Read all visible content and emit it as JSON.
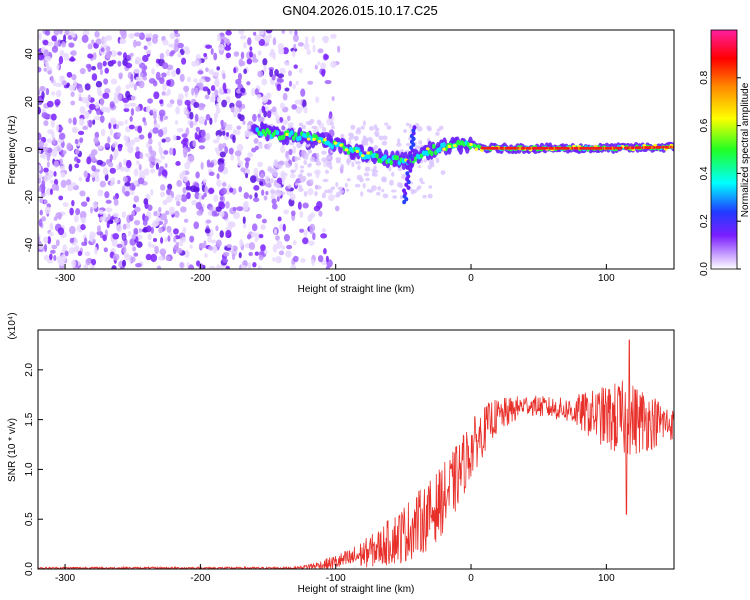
{
  "title": "GN04.2026.015.10.17.C25",
  "chart_data": [
    {
      "type": "heatmap",
      "xlabel": "Height of straight line (km)",
      "ylabel": "Frequency (Hz)",
      "xlim": [
        -320,
        150
      ],
      "ylim": [
        -50,
        50
      ],
      "x_ticks": [
        -300,
        -200,
        -100,
        0,
        100
      ],
      "y_ticks": [
        -40,
        -20,
        0,
        20,
        40
      ],
      "colorbar": {
        "label": "Normalized spectral amplitude",
        "range": [
          0,
          1
        ],
        "ticks": [
          0.0,
          0.2,
          0.4,
          0.6,
          0.8
        ],
        "tick_labels": [
          "0.0",
          "0.2",
          "0.4",
          "0.6",
          "0.8"
        ],
        "colors": [
          "#ffffff",
          "#c8a0ff",
          "#7a1fff",
          "#1f3cff",
          "#00ffff",
          "#22ff22",
          "#ffff00",
          "#ff8c00",
          "#ff0000",
          "#ff1fa0"
        ]
      },
      "noise_region_x": [
        -320,
        -120
      ],
      "signal_track": [
        {
          "x": -160,
          "y": 8
        },
        {
          "x": -140,
          "y": 6
        },
        {
          "x": -120,
          "y": 5
        },
        {
          "x": -100,
          "y": 2
        },
        {
          "x": -80,
          "y": -2
        },
        {
          "x": -60,
          "y": -4
        },
        {
          "x": -45,
          "y": -5
        },
        {
          "x": -35,
          "y": -1
        },
        {
          "x": -20,
          "y": 1
        },
        {
          "x": -5,
          "y": 2
        },
        {
          "x": 10,
          "y": 0.5
        },
        {
          "x": 50,
          "y": 0.5
        },
        {
          "x": 100,
          "y": 0.5
        },
        {
          "x": 150,
          "y": 1
        }
      ]
    },
    {
      "type": "line",
      "xlabel": "Height of straight line (km)",
      "ylabel": "SNR (10 * v/v)",
      "y_multiplier": "(x10⁴)",
      "xlim": [
        -320,
        150
      ],
      "ylim": [
        0,
        2.4
      ],
      "x_ticks": [
        -300,
        -200,
        -100,
        0,
        100
      ],
      "y_ticks": [
        0.0,
        0.5,
        1.0,
        1.5,
        2.0
      ],
      "y_tick_labels": [
        "0.0",
        "0.5",
        "1.0",
        "1.5",
        "2.0"
      ],
      "color": "#e8302a",
      "envelope": [
        {
          "x": -320,
          "mean": 0.01,
          "amp": 0.01
        },
        {
          "x": -130,
          "mean": 0.01,
          "amp": 0.01
        },
        {
          "x": -110,
          "mean": 0.04,
          "amp": 0.05
        },
        {
          "x": -90,
          "mean": 0.1,
          "amp": 0.1
        },
        {
          "x": -70,
          "mean": 0.2,
          "amp": 0.18
        },
        {
          "x": -50,
          "mean": 0.35,
          "amp": 0.3
        },
        {
          "x": -30,
          "mean": 0.55,
          "amp": 0.35
        },
        {
          "x": -15,
          "mean": 0.8,
          "amp": 0.35
        },
        {
          "x": 0,
          "mean": 1.2,
          "amp": 0.3
        },
        {
          "x": 15,
          "mean": 1.5,
          "amp": 0.2
        },
        {
          "x": 40,
          "mean": 1.65,
          "amp": 0.1
        },
        {
          "x": 70,
          "mean": 1.6,
          "amp": 0.12
        },
        {
          "x": 90,
          "mean": 1.55,
          "amp": 0.25
        },
        {
          "x": 110,
          "mean": 1.5,
          "amp": 0.4
        },
        {
          "x": 125,
          "mean": 1.5,
          "amp": 0.35
        },
        {
          "x": 150,
          "mean": 1.45,
          "amp": 0.15
        }
      ],
      "peaks": [
        {
          "x": 117,
          "y": 2.3
        },
        {
          "x": 115,
          "y": 0.55
        }
      ]
    }
  ]
}
